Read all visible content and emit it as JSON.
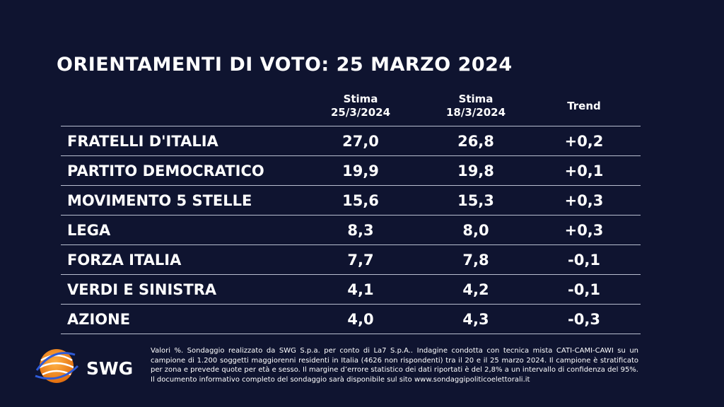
{
  "title": "ORIENTAMENTI DI VOTO: 25 MARZO 2024",
  "chart_data": {
    "type": "table",
    "columns": [
      {
        "label_line1": "Stima",
        "label_line2": "25/3/2024"
      },
      {
        "label_line1": "Stima",
        "label_line2": "18/3/2024"
      },
      {
        "label_line1": "Trend",
        "label_line2": ""
      }
    ],
    "rows": [
      {
        "party": "FRATELLI D'ITALIA",
        "stima_25": "27,0",
        "stima_18": "26,8",
        "trend": "+0,2"
      },
      {
        "party": "PARTITO DEMOCRATICO",
        "stima_25": "19,9",
        "stima_18": "19,8",
        "trend": "+0,1"
      },
      {
        "party": "MOVIMENTO 5 STELLE",
        "stima_25": "15,6",
        "stima_18": "15,3",
        "trend": "+0,3"
      },
      {
        "party": "LEGA",
        "stima_25": "8,3",
        "stima_18": "8,0",
        "trend": "+0,3"
      },
      {
        "party": "FORZA ITALIA",
        "stima_25": "7,7",
        "stima_18": "7,8",
        "trend": "-0,1"
      },
      {
        "party": "VERDI E SINISTRA",
        "stima_25": "4,1",
        "stima_18": "4,2",
        "trend": "-0,1"
      },
      {
        "party": "AZIONE",
        "stima_25": "4,0",
        "stima_18": "4,3",
        "trend": "-0,3"
      }
    ]
  },
  "logo": {
    "text": "SWG",
    "colors": {
      "orange": "#f08a1c",
      "blue": "#2e5bd8"
    }
  },
  "footnote": "Valori %. Sondaggio realizzato da SWG S.p.a. per conto di La7 S.p.A.. Indagine condotta con tecnica mista CATI-CAMI-CAWI su un campione di 1.200 soggetti maggiorenni residenti in Italia (4626 non rispondenti) tra il 20 e il 25 marzo 2024. Il campione è stratificato per zona e prevede quote per età e sesso. Il margine d’errore statistico dei dati riportati è del 2,8% a un intervallo di confidenza del 95%. Il documento informativo completo del sondaggio sarà disponibile sul sito www.sondaggipoliticoelettorali.it",
  "colors": {
    "background": "#0f1430",
    "text": "#ffffff",
    "rule": "#b9bfd0"
  }
}
